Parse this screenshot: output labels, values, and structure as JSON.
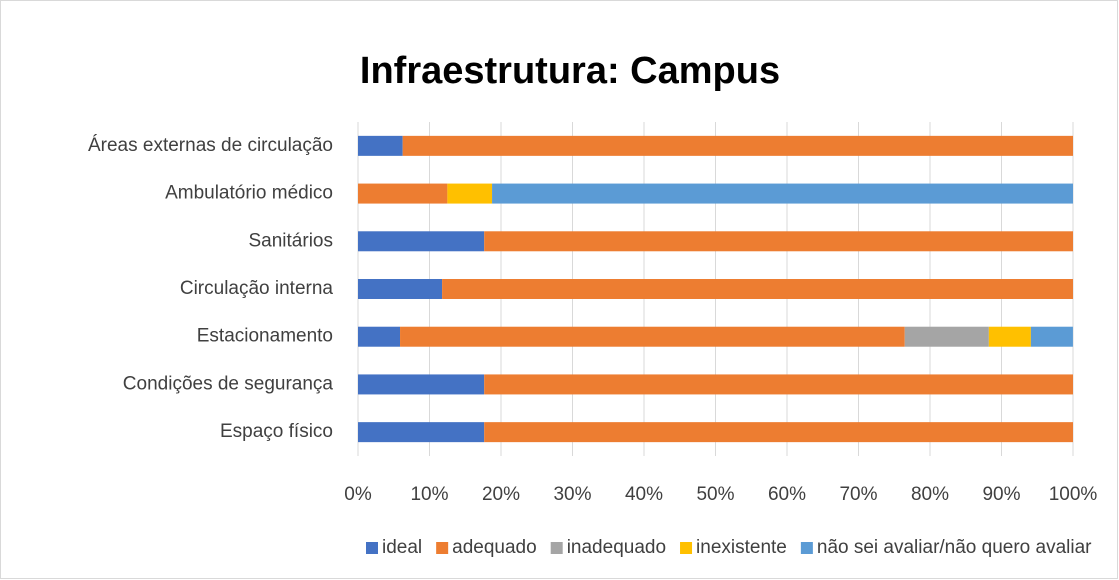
{
  "chart_data": {
    "type": "stacked-bar-horizontal",
    "title": "Infraestrutura: Campus",
    "categories": [
      "Áreas externas de circulação",
      "Ambulatório médico",
      "Sanitários",
      "Circulação interna",
      "Estacionamento",
      "Condições de segurança",
      "Espaço físico"
    ],
    "series": [
      {
        "name": "ideal",
        "color": "#4472c4",
        "values": [
          6.25,
          0,
          17.65,
          11.76,
          5.88,
          17.65,
          17.65
        ]
      },
      {
        "name": "adequado",
        "color": "#ed7d31",
        "values": [
          93.75,
          12.5,
          82.35,
          88.24,
          70.59,
          82.35,
          82.35
        ]
      },
      {
        "name": "inadequado",
        "color": "#a5a5a5",
        "values": [
          0,
          0,
          0,
          0,
          11.76,
          0,
          0
        ]
      },
      {
        "name": "inexistente",
        "color": "#ffc000",
        "values": [
          0,
          6.25,
          0,
          0,
          5.88,
          0,
          0
        ]
      },
      {
        "name": "não sei avaliar/não quero avaliar",
        "color": "#5b9bd5",
        "values": [
          0,
          81.25,
          0,
          0,
          5.88,
          0,
          0
        ]
      }
    ],
    "xlim": [
      0,
      100
    ],
    "xticks": [
      {
        "value": 0,
        "label": "0%"
      },
      {
        "value": 10,
        "label": "10%"
      },
      {
        "value": 20,
        "label": "20%"
      },
      {
        "value": 30,
        "label": "30%"
      },
      {
        "value": 40,
        "label": "40%"
      },
      {
        "value": 50,
        "label": "50%"
      },
      {
        "value": 60,
        "label": "60%"
      },
      {
        "value": 70,
        "label": "70%"
      },
      {
        "value": 80,
        "label": "80%"
      },
      {
        "value": 90,
        "label": "90%"
      },
      {
        "value": 100,
        "label": "100%"
      }
    ],
    "grid": true,
    "legend": "bottom"
  }
}
